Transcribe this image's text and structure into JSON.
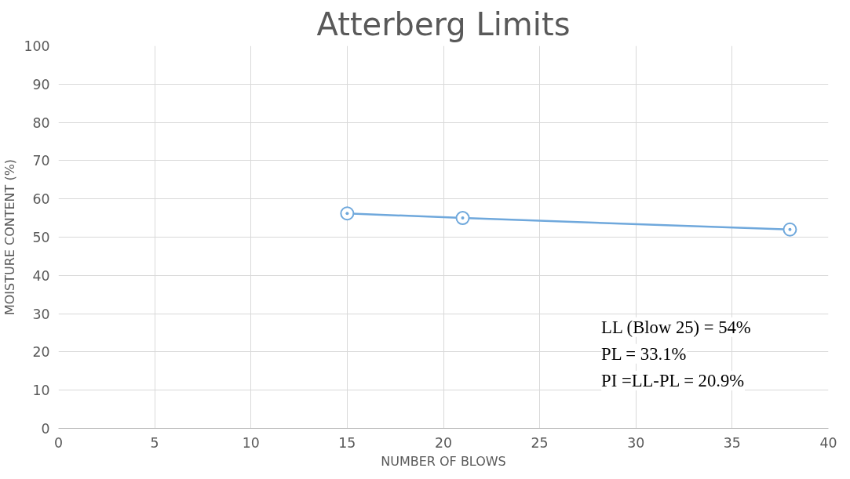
{
  "chart_data": {
    "type": "line",
    "title": "Atterberg Limits",
    "xlabel": "NUMBER OF BLOWS",
    "ylabel": "MOISTURE CONTENT (%)",
    "x": [
      15,
      21,
      38
    ],
    "series": [
      {
        "color": "#6fa8dc",
        "values": [
          56.2,
          55,
          52
        ]
      }
    ],
    "xlim": [
      0,
      40
    ],
    "xticks": [
      0,
      5,
      10,
      15,
      20,
      25,
      30,
      35,
      40
    ],
    "ylim": [
      0,
      100
    ],
    "yticks": [
      0,
      10,
      20,
      30,
      40,
      50,
      60,
      70,
      80,
      90,
      100
    ],
    "grid": true,
    "marker": "circle",
    "line_style": "solid",
    "annotations": [
      "LL (Blow 25) = 54%",
      "PL = 33.1%",
      "PI =LL-PL = 20.9%"
    ]
  }
}
